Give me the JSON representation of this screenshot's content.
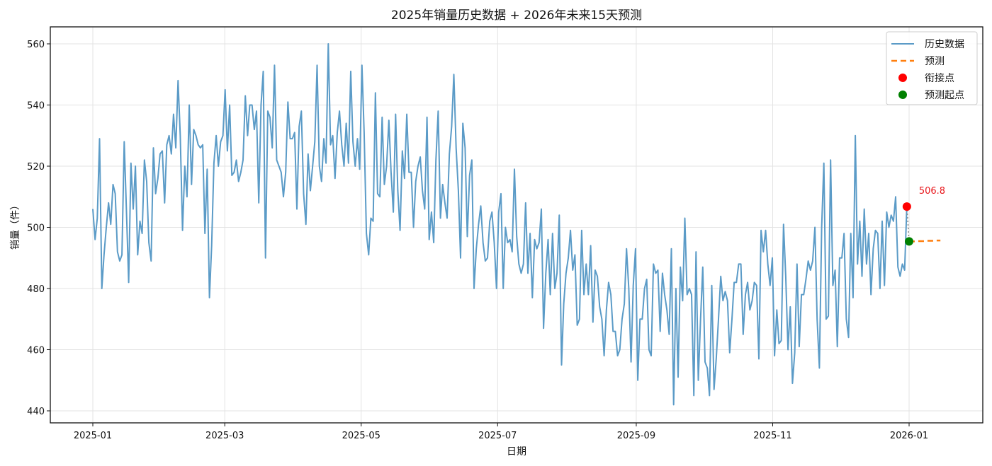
{
  "chart_data": {
    "type": "line",
    "title": "2025年销量历史数据 + 2026年未来15天预测",
    "xlabel": "日期",
    "ylabel": "销量（件）",
    "ylim": [
      435,
      566
    ],
    "yticks": [
      440,
      460,
      480,
      500,
      520,
      540,
      560
    ],
    "xticks": [
      "2025-01",
      "2025-03",
      "2025-05",
      "2025-07",
      "2025-09",
      "2025-11",
      "2026-01"
    ],
    "grid": true,
    "legend_position": "upper right",
    "legend": [
      {
        "label": "历史数据",
        "kind": "line",
        "color": "#5b9bc7"
      },
      {
        "label": "预测",
        "kind": "dashed-line",
        "color": "#ff7f0e"
      },
      {
        "label": "衔接点",
        "kind": "marker",
        "color": "#ff0000"
      },
      {
        "label": "预测起点",
        "kind": "marker",
        "color": "#008000"
      }
    ],
    "annotations": [
      {
        "text": "506.8",
        "x": "2025-12-31",
        "y": 506.8,
        "color": "#e8161b"
      }
    ],
    "series": [
      {
        "name": "历史数据",
        "start_date": "2025-01-01",
        "frequency": "daily",
        "color": "#5b9bc7",
        "values": [
          506,
          496,
          503,
          529,
          480,
          491,
          500,
          508,
          501,
          514,
          511,
          492,
          489,
          491,
          528,
          505,
          482,
          521,
          506,
          520,
          491,
          502,
          498,
          522,
          515,
          495,
          489,
          526,
          511,
          516,
          524,
          525,
          508,
          527,
          530,
          524,
          537,
          526,
          548,
          530,
          499,
          520,
          510,
          540,
          514,
          532,
          530,
          527,
          526,
          527,
          498,
          519,
          477,
          494,
          521,
          530,
          520,
          528,
          530,
          545,
          525,
          540,
          517,
          518,
          522,
          515,
          518,
          522,
          543,
          530,
          540,
          540,
          532,
          538,
          508,
          540,
          551,
          490,
          538,
          536,
          526,
          553,
          522,
          520,
          518,
          510,
          518,
          541,
          529,
          529,
          531,
          506,
          533,
          538,
          511,
          501,
          524,
          512,
          520,
          528,
          553,
          520,
          515,
          529,
          521,
          560,
          527,
          530,
          516,
          531,
          538,
          527,
          520,
          534,
          521,
          551,
          528,
          520,
          529,
          519,
          553,
          531,
          498,
          491,
          503,
          502,
          544,
          511,
          510,
          536,
          514,
          520,
          535,
          518,
          505,
          537,
          512,
          499,
          525,
          516,
          537,
          518,
          518,
          500,
          515,
          520,
          523,
          512,
          506,
          536,
          496,
          505,
          495,
          522,
          538,
          503,
          514,
          508,
          503,
          524,
          533,
          550,
          526,
          512,
          490,
          534,
          526,
          497,
          517,
          522,
          480,
          493,
          501,
          507,
          495,
          489,
          490,
          502,
          505,
          495,
          480,
          505,
          511,
          480,
          500,
          495,
          496,
          492,
          519,
          497,
          488,
          485,
          488,
          508,
          485,
          498,
          477,
          496,
          493,
          495,
          506,
          467,
          485,
          496,
          478,
          498,
          480,
          485,
          504,
          455,
          475,
          485,
          490,
          499,
          486,
          491,
          468,
          470,
          499,
          478,
          488,
          478,
          494,
          469,
          486,
          484,
          474,
          470,
          458,
          473,
          482,
          478,
          466,
          466,
          458,
          460,
          470,
          475,
          493,
          480,
          456,
          481,
          493,
          450,
          470,
          470,
          480,
          483,
          460,
          458,
          488,
          485,
          486,
          466,
          485,
          478,
          473,
          465,
          493,
          442,
          480,
          451,
          487,
          476,
          503,
          478,
          480,
          478,
          445,
          492,
          450,
          470,
          487,
          456,
          454,
          445,
          481,
          447,
          457,
          470,
          484,
          476,
          479,
          476,
          459,
          470,
          482,
          482,
          488,
          488,
          465,
          478,
          482,
          473,
          476,
          482,
          481,
          457,
          499,
          492,
          499,
          488,
          481,
          490,
          458,
          473,
          462,
          463,
          501,
          484,
          460,
          474,
          449,
          459,
          488,
          461,
          478,
          478,
          483,
          489,
          486,
          489,
          500,
          470,
          454,
          500,
          521,
          470,
          471,
          522,
          481,
          486,
          461,
          490,
          490,
          498,
          470,
          464,
          498,
          477,
          530,
          488,
          502,
          484,
          506,
          488,
          498,
          478,
          493,
          499,
          498,
          480,
          502,
          481,
          505,
          500,
          504,
          502,
          510,
          487,
          484,
          488,
          486,
          507
        ]
      },
      {
        "name": "预测",
        "start_date": "2026-01-01",
        "frequency": "daily",
        "color": "#ff7f0e",
        "style": "dashed",
        "values": [
          495.4,
          495.4,
          495.4,
          495.4,
          495.5,
          495.5,
          495.5,
          495.5,
          495.6,
          495.6,
          495.6,
          495.6,
          495.7,
          495.7,
          495.7
        ]
      }
    ],
    "markers": [
      {
        "name": "衔接点",
        "date": "2025-12-31",
        "value": 506.8,
        "color": "#ff0000"
      },
      {
        "name": "预测起点",
        "date": "2026-01-01",
        "value": 495.4,
        "color": "#008000"
      }
    ]
  }
}
